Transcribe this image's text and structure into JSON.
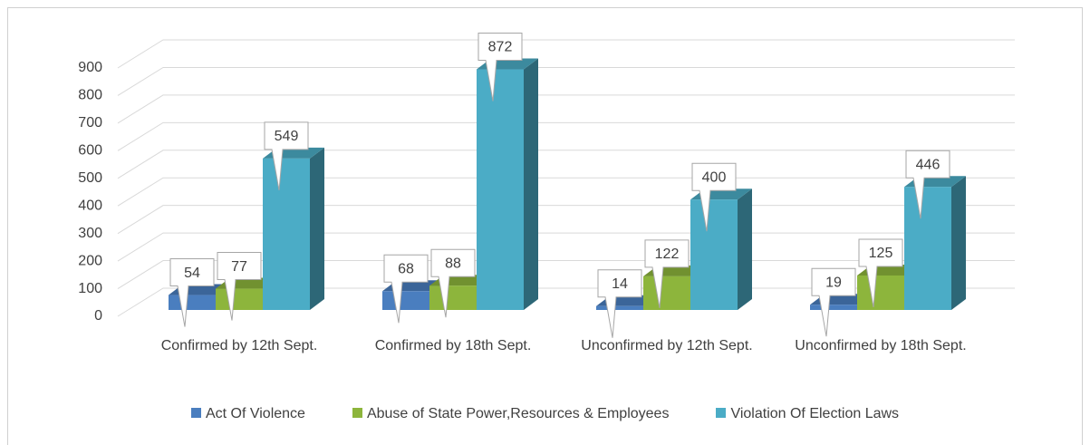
{
  "chart_data": {
    "type": "bar3d",
    "categories": [
      "Confirmed by 12th Sept.",
      "Confirmed by 18th Sept.",
      "Unconfirmed by 12th Sept.",
      "Unconfirmed by 18th Sept."
    ],
    "series": [
      {
        "name": "Act Of Violence",
        "color": "#4a7ebf",
        "values": [
          54,
          68,
          14,
          19
        ]
      },
      {
        "name": "Abuse of State Power,Resources & Employees",
        "color": "#8db53c",
        "values": [
          77,
          88,
          122,
          125
        ]
      },
      {
        "name": "Violation Of Election Laws",
        "color": "#4bacc6",
        "values": [
          549,
          872,
          400,
          446
        ]
      }
    ],
    "ylim": [
      0,
      900
    ],
    "yticks": [
      0,
      100,
      200,
      300,
      400,
      500,
      600,
      700,
      800,
      900
    ],
    "grid": true,
    "legend": "bottom"
  }
}
